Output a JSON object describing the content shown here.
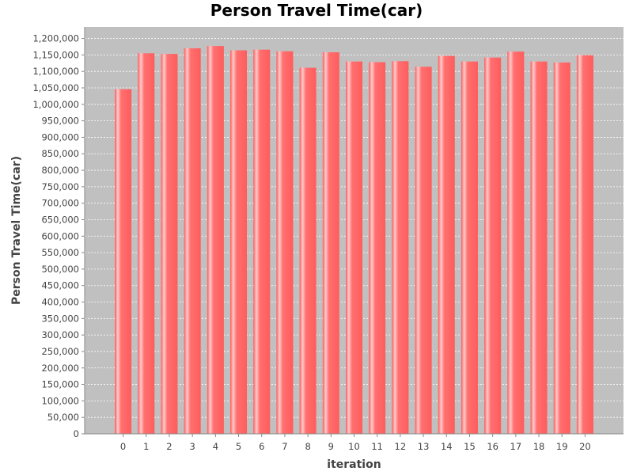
{
  "chart_data": {
    "type": "bar",
    "title": "Person Travel Time(car)",
    "xlabel": "iteration",
    "ylabel": "Person Travel Time(car)",
    "categories": [
      "0",
      "1",
      "2",
      "3",
      "4",
      "5",
      "6",
      "7",
      "8",
      "9",
      "10",
      "11",
      "12",
      "13",
      "14",
      "15",
      "16",
      "17",
      "18",
      "19",
      "20"
    ],
    "values": [
      1046000,
      1155000,
      1153000,
      1170000,
      1177000,
      1164000,
      1166000,
      1161000,
      1111000,
      1158000,
      1130000,
      1128000,
      1131000,
      1114000,
      1147000,
      1130000,
      1142000,
      1160000,
      1130000,
      1127000,
      1149000
    ],
    "ylim": [
      0,
      1235000
    ],
    "ytick_step": 50000,
    "grid": true,
    "colors": {
      "bar": "#ff6666",
      "bar_highlight": "#ffb3b3",
      "plot_bg": "#c0c0c0",
      "grid": "#ffffff",
      "axis": "#888888"
    }
  }
}
